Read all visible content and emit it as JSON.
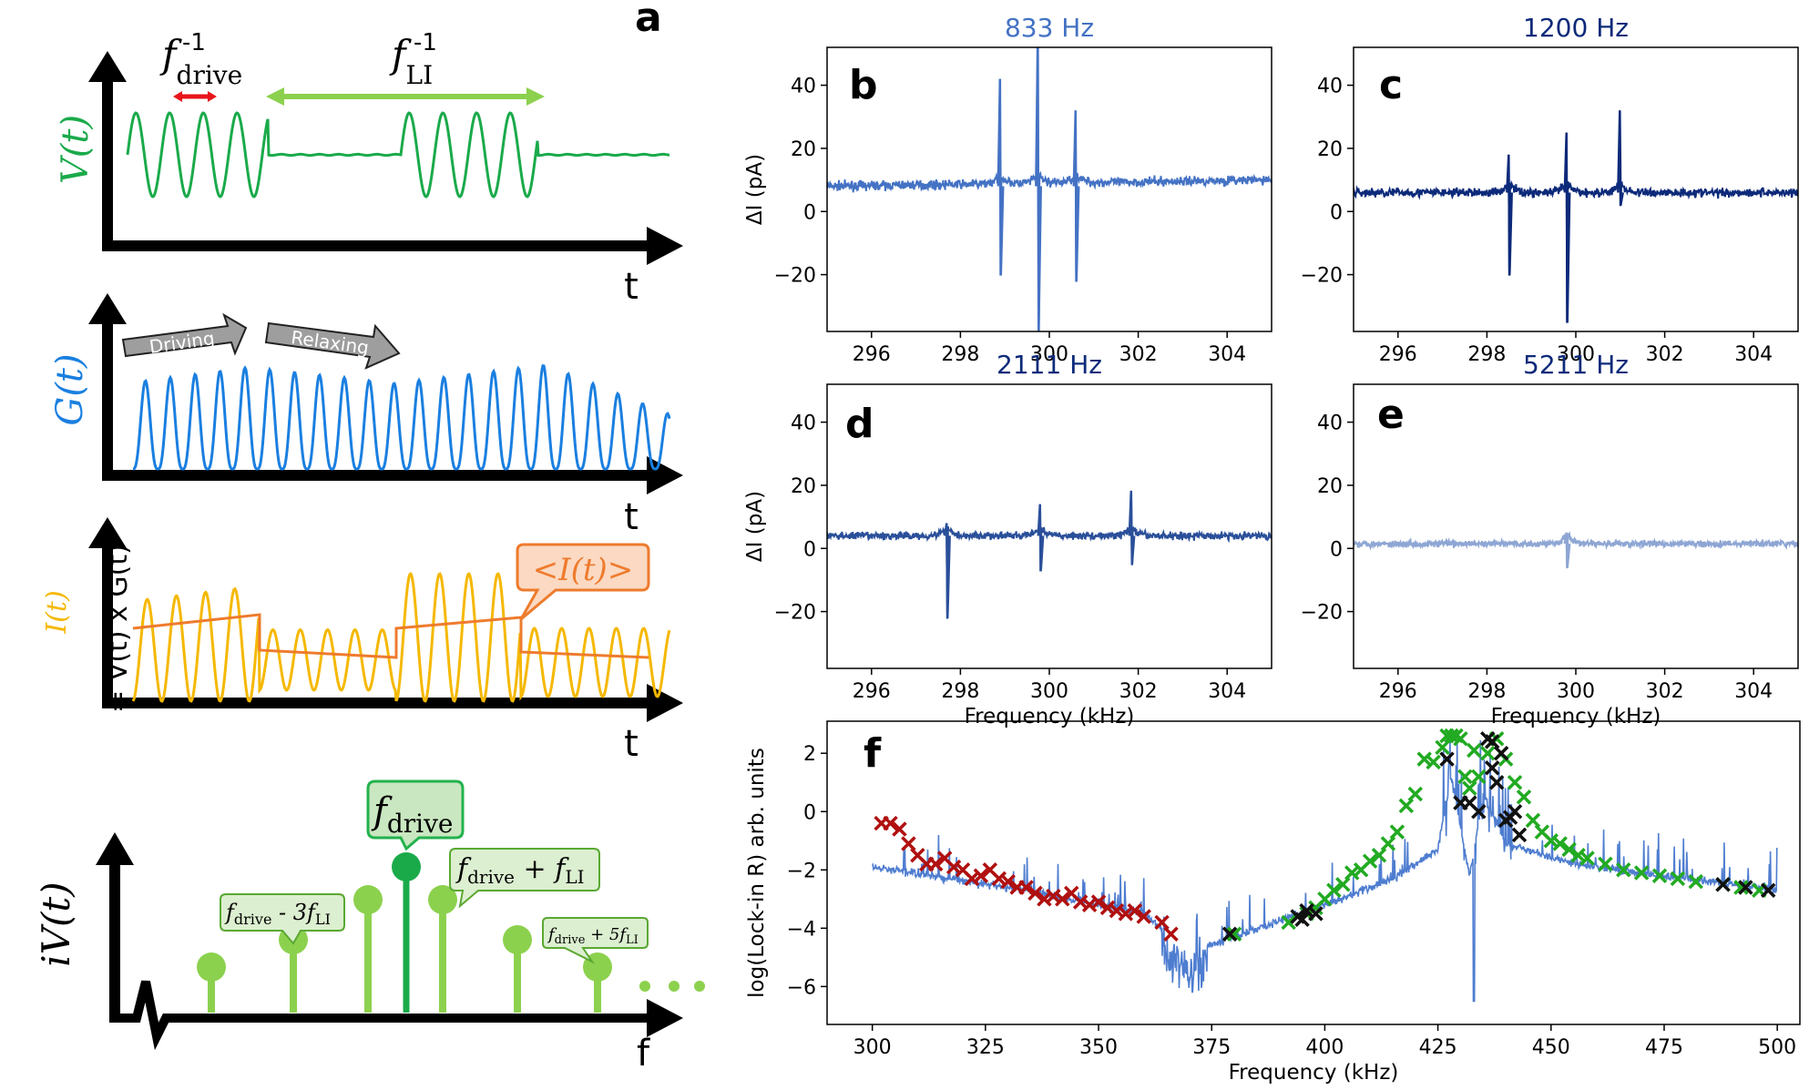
{
  "colors": {
    "green": "#1aaa4a",
    "lightgreen": "#8cd14e",
    "midgreen": "#23b24d",
    "blue": "#1a7fe0",
    "orange": "#ee7b2d",
    "yellow": "#f5b800",
    "red": "#e8141b",
    "gray": "#9e9e9e",
    "b": "#4472c4",
    "c": "#0d2a7a",
    "d": "#2a4f9a",
    "e": "#8ea6d4",
    "f_line": "#4e7dd0",
    "f_red": "#b01010",
    "f_green": "#22aa22",
    "f_black": "#111111"
  },
  "schematic": {
    "panel_label": "a",
    "vt_label": "V(t)",
    "gt_label": "G(t)",
    "it_label": "I(t)",
    "it_eq": "= V(t) x G(t)",
    "t_label": "t",
    "f_label": "f",
    "ivt_label": "iV(t)",
    "fdrive_inv": "f",
    "fdrive_inv_sub": "drive",
    "fdrive_inv_sup": "-1",
    "fli_inv": "f",
    "fli_inv_sub": "LI",
    "fli_inv_sup": "-1",
    "driving": "Driving",
    "relaxing": "Relaxing",
    "mean_current": "<I(t)>",
    "callout_center": "f",
    "callout_center_sub": "drive",
    "callout_plus": "f",
    "callout_plus_sub": "drive",
    "callout_plus_op": " + f",
    "callout_plus_sub2": "LI",
    "callout_minus": "f",
    "callout_minus_sub": "drive",
    "callout_minus_op": " - 3f",
    "callout_minus_sub2": "LI",
    "callout_plus5": "f",
    "callout_plus5_sub": "drive",
    "callout_plus5_op": " + 5f",
    "callout_plus5_sub2": "LI"
  },
  "chart_data": [
    {
      "panel": "b",
      "type": "line",
      "title": "833 Hz",
      "ylabel": "ΔI (pA)",
      "xlabel": "",
      "xlim": [
        295,
        305
      ],
      "ylim": [
        -38,
        52
      ],
      "xticks": [
        296,
        298,
        300,
        302,
        304
      ],
      "yticks": [
        -20,
        0,
        20,
        40
      ],
      "baseline": [
        [
          295,
          8
        ],
        [
          305,
          10
        ]
      ],
      "features": [
        {
          "x": 298.9,
          "up": 42,
          "down": -20
        },
        {
          "x": 299.75,
          "up": 55,
          "down": -38
        },
        {
          "x": 300.6,
          "up": 32,
          "down": -22
        }
      ],
      "noise": 1.2
    },
    {
      "panel": "c",
      "type": "line",
      "title": "1200 Hz",
      "ylabel": "",
      "xlabel": "",
      "xlim": [
        295,
        305
      ],
      "ylim": [
        -38,
        52
      ],
      "xticks": [
        296,
        298,
        300,
        302,
        304
      ],
      "yticks": [
        -20,
        0,
        20,
        40
      ],
      "baseline": [
        [
          295,
          6
        ],
        [
          305,
          6
        ]
      ],
      "features": [
        {
          "x": 298.5,
          "up": 18,
          "down": -20
        },
        {
          "x": 299.8,
          "up": 25,
          "down": -35
        },
        {
          "x": 301,
          "up": 32,
          "down": 2
        }
      ],
      "noise": 1.2
    },
    {
      "panel": "d",
      "type": "line",
      "title": "2111 Hz",
      "ylabel": "ΔI (pA)",
      "xlabel": "Frequency (kHz)",
      "xlim": [
        295,
        305
      ],
      "ylim": [
        -38,
        52
      ],
      "xticks": [
        296,
        298,
        300,
        302,
        304
      ],
      "yticks": [
        -20,
        0,
        20,
        40
      ],
      "baseline": [
        [
          295,
          4
        ],
        [
          305,
          4
        ]
      ],
      "features": [
        {
          "x": 297.7,
          "up": 8,
          "down": -22
        },
        {
          "x": 299.8,
          "up": 14,
          "down": -7
        },
        {
          "x": 301.85,
          "up": 18,
          "down": -5
        }
      ],
      "noise": 1.0
    },
    {
      "panel": "e",
      "type": "line",
      "title": "5211 Hz",
      "ylabel": "",
      "xlabel": "Frequency (kHz)",
      "xlim": [
        295,
        305
      ],
      "ylim": [
        -38,
        52
      ],
      "xticks": [
        296,
        298,
        300,
        302,
        304
      ],
      "yticks": [
        -20,
        0,
        20,
        40
      ],
      "baseline": [
        [
          295,
          1.5
        ],
        [
          305,
          1.5
        ]
      ],
      "features": [
        {
          "x": 299.8,
          "up": 5,
          "down": -6
        }
      ],
      "noise": 0.9
    },
    {
      "panel": "f",
      "type": "scatter",
      "title": "",
      "ylabel": "log(Lock-in R) arb. units",
      "xlabel": "Frequency (kHz)",
      "xlim": [
        290,
        505
      ],
      "ylim": [
        -7.3,
        3.1
      ],
      "xticks": [
        300,
        325,
        350,
        375,
        400,
        425,
        450,
        475,
        500
      ],
      "yticks": [
        -6,
        -4,
        -2,
        0,
        2
      ],
      "line_baseline": [
        [
          300,
          -1.9
        ],
        [
          330,
          -2.6
        ],
        [
          360,
          -3.5
        ],
        [
          370,
          -4.8
        ],
        [
          380,
          -4.3
        ],
        [
          400,
          -3.2
        ],
        [
          415,
          -2.3
        ],
        [
          425,
          -1.3
        ],
        [
          428,
          1.2
        ],
        [
          432,
          -2.2
        ],
        [
          435,
          0.6
        ],
        [
          440,
          -1.1
        ],
        [
          455,
          -1.8
        ],
        [
          475,
          -2.2
        ],
        [
          500,
          -2.7
        ]
      ],
      "series": [
        {
          "name": "red",
          "points": [
            [
              302,
              -0.4
            ],
            [
              304,
              -0.4
            ],
            [
              306,
              -0.6
            ],
            [
              308,
              -1.1
            ],
            [
              310,
              -1.5
            ],
            [
              312,
              -1.8
            ],
            [
              314,
              -1.8
            ],
            [
              316,
              -1.6
            ],
            [
              318,
              -1.9
            ],
            [
              320,
              -2.0
            ],
            [
              322,
              -2.3
            ],
            [
              324,
              -2.2
            ],
            [
              326,
              -2.0
            ],
            [
              328,
              -2.3
            ],
            [
              330,
              -2.4
            ],
            [
              332,
              -2.6
            ],
            [
              334,
              -2.6
            ],
            [
              336,
              -2.8
            ],
            [
              338,
              -3.0
            ],
            [
              340,
              -2.9
            ],
            [
              342,
              -3.0
            ],
            [
              344,
              -2.8
            ],
            [
              346,
              -3.1
            ],
            [
              348,
              -3.2
            ],
            [
              350,
              -3.1
            ],
            [
              352,
              -3.3
            ],
            [
              354,
              -3.4
            ],
            [
              356,
              -3.5
            ],
            [
              358,
              -3.4
            ],
            [
              360,
              -3.6
            ],
            [
              364,
              -3.8
            ],
            [
              366,
              -4.2
            ]
          ]
        },
        {
          "name": "green",
          "points": [
            [
              380,
              -4.2
            ],
            [
              392,
              -3.8
            ],
            [
              396,
              -3.5
            ],
            [
              398,
              -3.3
            ],
            [
              400,
              -3.0
            ],
            [
              402,
              -2.7
            ],
            [
              404,
              -2.5
            ],
            [
              406,
              -2.1
            ],
            [
              408,
              -2.0
            ],
            [
              410,
              -1.7
            ],
            [
              412,
              -1.5
            ],
            [
              414,
              -1.1
            ],
            [
              416,
              -0.7
            ],
            [
              418,
              0.2
            ],
            [
              420,
              0.6
            ],
            [
              422,
              1.8
            ],
            [
              424,
              1.7
            ],
            [
              426,
              2.2
            ],
            [
              427,
              2.6
            ],
            [
              428,
              2.6
            ],
            [
              429,
              2.6
            ],
            [
              430,
              2.5
            ],
            [
              431,
              1.2
            ],
            [
              432,
              0.8
            ],
            [
              433,
              2.1
            ],
            [
              434,
              1.2
            ],
            [
              436,
              2.0
            ],
            [
              438,
              2.5
            ],
            [
              440,
              1.8
            ],
            [
              442,
              1.0
            ],
            [
              444,
              0.5
            ],
            [
              446,
              -0.3
            ],
            [
              448,
              -0.7
            ],
            [
              450,
              -1.0
            ],
            [
              452,
              -1.1
            ],
            [
              454,
              -1.3
            ],
            [
              456,
              -1.5
            ],
            [
              458,
              -1.6
            ],
            [
              462,
              -1.8
            ],
            [
              466,
              -2.0
            ],
            [
              470,
              -2.1
            ],
            [
              474,
              -2.2
            ],
            [
              478,
              -2.3
            ],
            [
              482,
              -2.4
            ],
            [
              488,
              -2.5
            ],
            [
              492,
              -2.6
            ],
            [
              496,
              -2.7
            ]
          ]
        },
        {
          "name": "black",
          "points": [
            [
              379,
              -4.2
            ],
            [
              394,
              -3.6
            ],
            [
              395,
              -3.7
            ],
            [
              396,
              -3.4
            ],
            [
              398,
              -3.5
            ],
            [
              427,
              1.8
            ],
            [
              430,
              0.3
            ],
            [
              432,
              0.3
            ],
            [
              434,
              0.0
            ],
            [
              436,
              2.5
            ],
            [
              437,
              2.4
            ],
            [
              437,
              1.5
            ],
            [
              438,
              1.0
            ],
            [
              439,
              2.0
            ],
            [
              440,
              -0.3
            ],
            [
              441,
              -0.2
            ],
            [
              442,
              0.0
            ],
            [
              443,
              -0.8
            ],
            [
              488,
              -2.5
            ],
            [
              493,
              -2.6
            ],
            [
              498,
              -2.7
            ]
          ]
        }
      ]
    }
  ]
}
